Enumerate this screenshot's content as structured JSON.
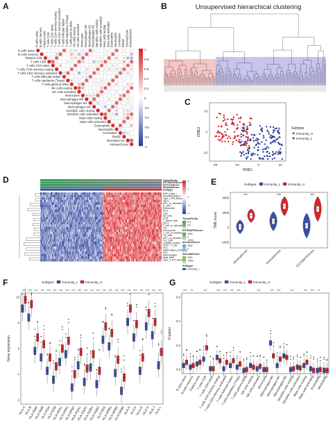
{
  "panels": {
    "A": {
      "label": "A",
      "cells": [
        "B cells naive",
        "B cells memory",
        "Plasma cells",
        "T cells CD8",
        "T cells CD4 naive",
        "T cells CD4 memory resting",
        "T cells CD4 memory activated",
        "T cells follicular helper",
        "T cells regulatory (Tregs)",
        "T cells gamma delta",
        "NK cells resting",
        "NK cells activated",
        "Monocytes",
        "Macrophages M0",
        "Macrophages M1",
        "Macrophages M2",
        "Dendritic cells resting",
        "Dendritic cells activated",
        "Mast cells resting",
        "Mast cells activated",
        "Eosinophils",
        "Neutrophils",
        "Correlation",
        "RMSE",
        "StromalScore",
        "ImmuneScore"
      ],
      "colorbar_ticks": [
        "1",
        "0.8",
        "0.6",
        "0.4",
        "0.2",
        "0",
        "-0.2",
        "-0.4",
        "-0.6",
        "-0.8",
        "-1"
      ],
      "colors": {
        "pos": "#d7262b",
        "neg": "#2b3f9c"
      }
    },
    "B": {
      "label": "B",
      "title": "Unsupervised hierarchical clustering",
      "colors": {
        "left": "#f2b7b7",
        "right": "#b7b7e8"
      }
    },
    "C": {
      "label": "C",
      "xlabel": "tSNE1",
      "ylabel": "tSNE2",
      "xticks": [
        "-20",
        "-10",
        "0",
        "10"
      ],
      "yticks": [
        "10",
        "0",
        "-10"
      ],
      "legend_title": "Subtype",
      "legend": [
        "Immunity_H",
        "Immunity_L"
      ],
      "colors": {
        "H": "#d7262b",
        "L": "#2b3f9c"
      }
    },
    "D": {
      "label": "D",
      "rows": [
        "MHC_class_I",
        "Parainflammation",
        "Type_I_IFN_Reponse",
        "aDCs",
        "APC_co_stimulation",
        "B_cells",
        "Neutrophils",
        "iDCs",
        "Treg",
        "NK_cells",
        "CCR",
        "T_helper_cells",
        "pDCs",
        "T_cell_co_stimulation",
        "Th1",
        "Check-point",
        "T_cell_co-inhibition",
        "TIL_cells",
        "APC_co_inhibition",
        "Th1_cells",
        "Cytolytic_activity",
        "CD8+_T_cells",
        "HLA",
        "Inflammation-promoting",
        "DCs",
        "Macrophages",
        "Mast_cells",
        "Type_II_IFN_Reponse"
      ],
      "annotation_rows": [
        "TumorPurity",
        "ESTIMATEScore",
        "ImmuneScore",
        "StromalScore",
        "Subtype"
      ],
      "scale_ticks": [
        "2",
        "1",
        "0",
        "-1",
        "-2"
      ],
      "legend": {
        "tumorpurity_title": "TumorPurity",
        "tumorpurity_ticks": [
          "0.9",
          "0.5"
        ],
        "estimate_title": "ESTIMATEScore",
        "estimate_ticks": [
          "4000",
          "0",
          "-2000"
        ],
        "immune_title": "ImmuneScore",
        "immune_ticks": [
          "2500",
          "0"
        ],
        "stromal_title": "StromalScore",
        "stromal_ticks": [
          "1500",
          "-1500"
        ],
        "subtype_title": "Subtype",
        "subtype_items": [
          "Immunity_L",
          "Immunity_H"
        ]
      }
    },
    "E": {
      "label": "E",
      "legend_title": "Subtype",
      "legend": [
        "Immunity_L",
        "Immunity_H"
      ],
      "ylabel": "TME score",
      "yticks": [
        "4000",
        "2000",
        "0",
        "-2000"
      ],
      "categories": [
        "StromalScore",
        "ImmuneScore",
        "ESTIMATEScore"
      ],
      "signif": [
        "***",
        "***",
        "***"
      ]
    },
    "F": {
      "label": "F",
      "legend_title": "Subtype",
      "legend": [
        "Immunity_L",
        "Immunity_H"
      ],
      "ylabel": "Gene expression",
      "yticks": [
        "10",
        "8",
        "6",
        "4",
        "2"
      ],
      "categories": [
        "HLA-A",
        "HLA-B",
        "HLA-DMA",
        "HLA-DMB",
        "HLA-DOA",
        "HLA-DOB",
        "HLA-DPA1",
        "HLA-DPB1",
        "HLA-DPB2",
        "HLA-DQA1",
        "HLA-DQA2",
        "HLA-DQB1",
        "HLA-DQB2",
        "HLA-DRA",
        "HLA-DRB1",
        "HLA-DRB5",
        "HLA-DRB6",
        "HLA-E",
        "HLA-F",
        "HLA-G",
        "HLA-H",
        "HLA-J",
        "HLA-L"
      ],
      "signif": "***"
    },
    "G": {
      "label": "G",
      "legend_title": "Subtype",
      "legend": [
        "Immunity_L",
        "Immunity_H"
      ],
      "ylabel": "Fraction",
      "yticks": [
        "0.6",
        "0.4",
        "0.2",
        "0.0"
      ],
      "categories": [
        "B cells naive",
        "B cells memory",
        "Plasma cells",
        "T cells CD8",
        "T cells CD4 naive",
        "T cells CD4 memory resting",
        "T cells CD4 memory activated",
        "T cells follicular helper",
        "T cells regulatory (Tregs)",
        "T cells gamma delta",
        "NK cells resting",
        "NK cells activated",
        "Monocytes",
        "Macrophages M0",
        "Macrophages M1",
        "Macrophages M2",
        "Dendritic cells resting",
        "Dendritic cells activated",
        "Mast cells resting",
        "Mast cells activated",
        "Eosinophils",
        "Neutrophils"
      ],
      "signif": [
        "***",
        "**",
        "",
        "***",
        "",
        "***",
        "***",
        "***",
        "***",
        "*",
        "",
        "***",
        "",
        "***",
        "***",
        "",
        "***",
        "",
        "***",
        "***",
        "**",
        ""
      ]
    }
  },
  "colors": {
    "low": "#3a4fa8",
    "high": "#d7262b",
    "annot_green": "#2e9e4f"
  }
}
